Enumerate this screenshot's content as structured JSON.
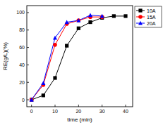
{
  "chart_data": {
    "type": "line",
    "x_label": "time (min)",
    "y_label": "RE(g/L)(%)",
    "x": [
      0,
      5,
      10,
      15,
      20,
      25,
      30,
      35,
      40
    ],
    "series": [
      {
        "name": "10A",
        "color": "#000000",
        "marker": "square",
        "values": [
          0,
          5,
          25,
          62,
          82,
          89,
          94,
          96,
          96
        ]
      },
      {
        "name": "15A",
        "color": "#ff0000",
        "marker": "circle",
        "values": [
          0,
          17,
          63,
          87,
          91,
          95,
          95,
          null,
          null
        ]
      },
      {
        "name": "20A",
        "color": "#0000ff",
        "marker": "triangle",
        "values": [
          0,
          19,
          71,
          89,
          91,
          97,
          96,
          null,
          null
        ]
      }
    ],
    "xlim": [
      -2,
      43
    ],
    "ylim": [
      -8,
      108
    ],
    "xticks": [
      0,
      10,
      20,
      30,
      40
    ],
    "yticks": [
      0,
      20,
      40,
      60,
      80,
      100
    ],
    "legend": "right",
    "grid": false
  }
}
